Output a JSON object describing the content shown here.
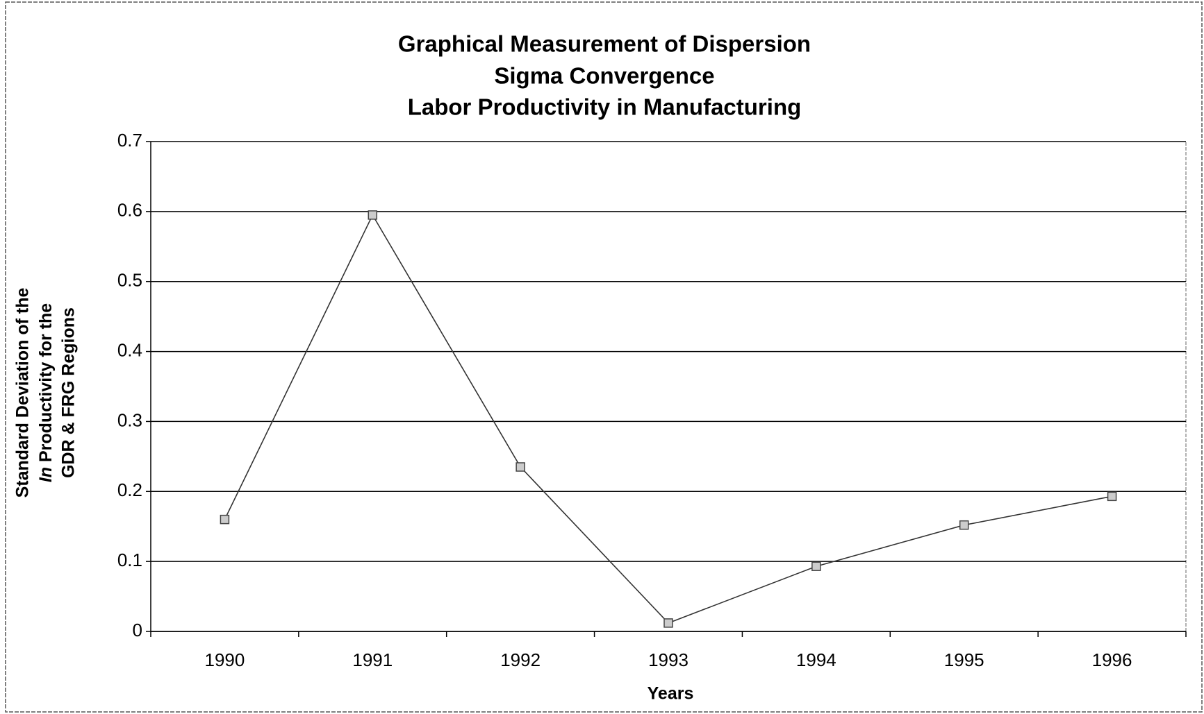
{
  "chart_data": {
    "type": "line",
    "title": [
      "Graphical Measurement of Dispersion",
      "Sigma Convergence",
      "Labor Productivity in Manufacturing"
    ],
    "x_label": "Years",
    "y_label": [
      "Standard Deviation of the",
      [
        "In",
        " Productivity for the"
      ],
      "GDR & FRG Regions"
    ],
    "categories": [
      "1990",
      "1991",
      "1992",
      "1993",
      "1994",
      "1995",
      "1996"
    ],
    "series": [
      {
        "color": "#333333",
        "values": [
          0.16,
          0.595,
          0.235,
          0.012,
          0.093,
          0.152,
          0.193
        ]
      }
    ],
    "ylim": [
      0,
      0.7
    ],
    "yticks": [
      0,
      0.1,
      0.2,
      0.3,
      0.4,
      0.5,
      0.6,
      0.7
    ],
    "grid": true
  }
}
